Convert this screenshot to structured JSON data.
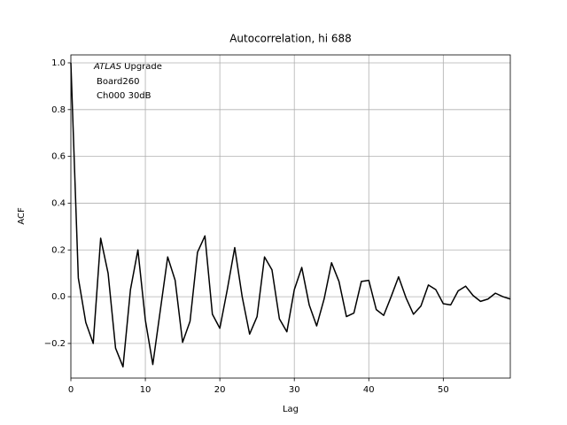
{
  "chart_data": {
    "type": "line",
    "title": "Autocorrelation, hi 688",
    "xlabel": "Lag",
    "ylabel": "ACF",
    "annotation": [
      "ATLAS",
      "Upgrade",
      "Board260",
      "Ch000 30dB"
    ],
    "x": [
      0,
      1,
      2,
      3,
      4,
      5,
      6,
      7,
      8,
      9,
      10,
      11,
      12,
      13,
      14,
      15,
      16,
      17,
      18,
      19,
      20,
      21,
      22,
      23,
      24,
      25,
      26,
      27,
      28,
      29,
      30,
      31,
      32,
      33,
      34,
      35,
      36,
      37,
      38,
      39,
      40,
      41,
      42,
      43,
      44,
      45,
      46,
      47,
      48,
      49,
      50,
      51,
      52,
      53,
      54,
      55,
      56,
      57,
      58,
      59
    ],
    "series": [
      {
        "color": "#000000",
        "values": [
          1.0,
          0.08,
          -0.11,
          -0.2,
          0.25,
          0.1,
          -0.22,
          -0.3,
          0.03,
          0.2,
          -0.1,
          -0.29,
          -0.06,
          0.17,
          0.07,
          -0.195,
          -0.105,
          0.19,
          0.26,
          -0.075,
          -0.135,
          0.03,
          0.21,
          0.0,
          -0.16,
          -0.085,
          0.17,
          0.115,
          -0.095,
          -0.15,
          0.03,
          0.125,
          -0.035,
          -0.125,
          -0.01,
          0.145,
          0.065,
          -0.085,
          -0.07,
          0.065,
          0.07,
          -0.055,
          -0.08,
          0.0,
          0.085,
          -0.005,
          -0.075,
          -0.04,
          0.05,
          0.03,
          -0.03,
          -0.035,
          0.025,
          0.045,
          0.005,
          -0.02,
          -0.01,
          0.015,
          0.0,
          -0.01
        ]
      }
    ],
    "xlim": [
      0,
      59
    ],
    "ylim": [
      -0.348,
      1.034
    ],
    "xticks": [
      0,
      10,
      20,
      30,
      40,
      50
    ],
    "yticks": [
      {
        "value": -0.2,
        "label": "−0.2"
      },
      {
        "value": 0,
        "label": "0.0"
      },
      0.2,
      0.4,
      0.6,
      0.8,
      {
        "value": 1,
        "label": "1.0"
      }
    ],
    "grid": true
  }
}
